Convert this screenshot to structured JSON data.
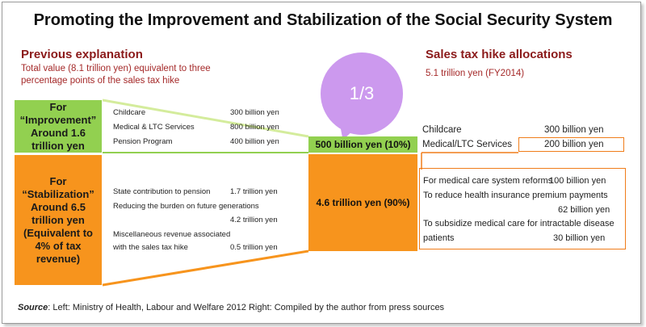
{
  "title": "Promoting the Improvement and Stabilization of the Social Security System",
  "left": {
    "heading": "Previous explanation",
    "sub_line1": "Total value (8.1 trillion yen) equivalent to three",
    "sub_line2": "percentage points of the sales tax hike",
    "improvement": {
      "label_lines": [
        "For",
        "“Improvement”",
        "Around 1.6",
        "trillion yen"
      ],
      "items": [
        {
          "label": "Childcare",
          "value": "300 billion yen"
        },
        {
          "label": "Medical & LTC Services",
          "value": "800 billion yen"
        },
        {
          "label": "Pension Program",
          "value": "400 billion yen"
        }
      ]
    },
    "stabilization": {
      "label_lines": [
        "For",
        "“Stabilization”",
        "Around 6.5",
        "trillion yen",
        "(Equivalent to",
        "4% of tax",
        "revenue)"
      ],
      "item1_label": "State contribution to pension",
      "item1_value": "1.7 trillion yen",
      "item2_label": "Reducing the burden on future generations",
      "item2_value": "4.2 trillion yen",
      "item3_label1": "Miscellaneous revenue associated",
      "item3_label2": "with the sales tax hike",
      "item3_value": "0.5 trillion yen"
    }
  },
  "middle": {
    "bubble": "1/3",
    "green": "500 billion yen (10%)",
    "orange": "4.6 trillion yen (90%)"
  },
  "right": {
    "heading": "Sales tax hike allocations",
    "sub": "5.1 trillion yen (FY2014)",
    "items": [
      {
        "label": "Childcare",
        "value": "300 billion yen"
      },
      {
        "label": "Medical/LTC Services",
        "value": "200 billion yen"
      }
    ],
    "details": {
      "d1_label": "For medical care system reforms",
      "d1_value": "100 billion yen",
      "d2_label": "To reduce health insurance premium payments",
      "d2_value": "62 billion yen",
      "d3_label1": "To subsidize medical care for intractable disease",
      "d3_label2": "patients",
      "d3_value": "30 billion yen"
    }
  },
  "source": {
    "prefix": "Source",
    "text": ": Left: Ministry of Health, Labour and Welfare 2012  Right: Compiled by the author from press sources"
  },
  "colors": {
    "green": "#92d050",
    "orange": "#f7941d",
    "heading_red": "#8b1a1a",
    "bubble_purple": "#cc99ee",
    "outline_orange": "#f07d1a"
  }
}
